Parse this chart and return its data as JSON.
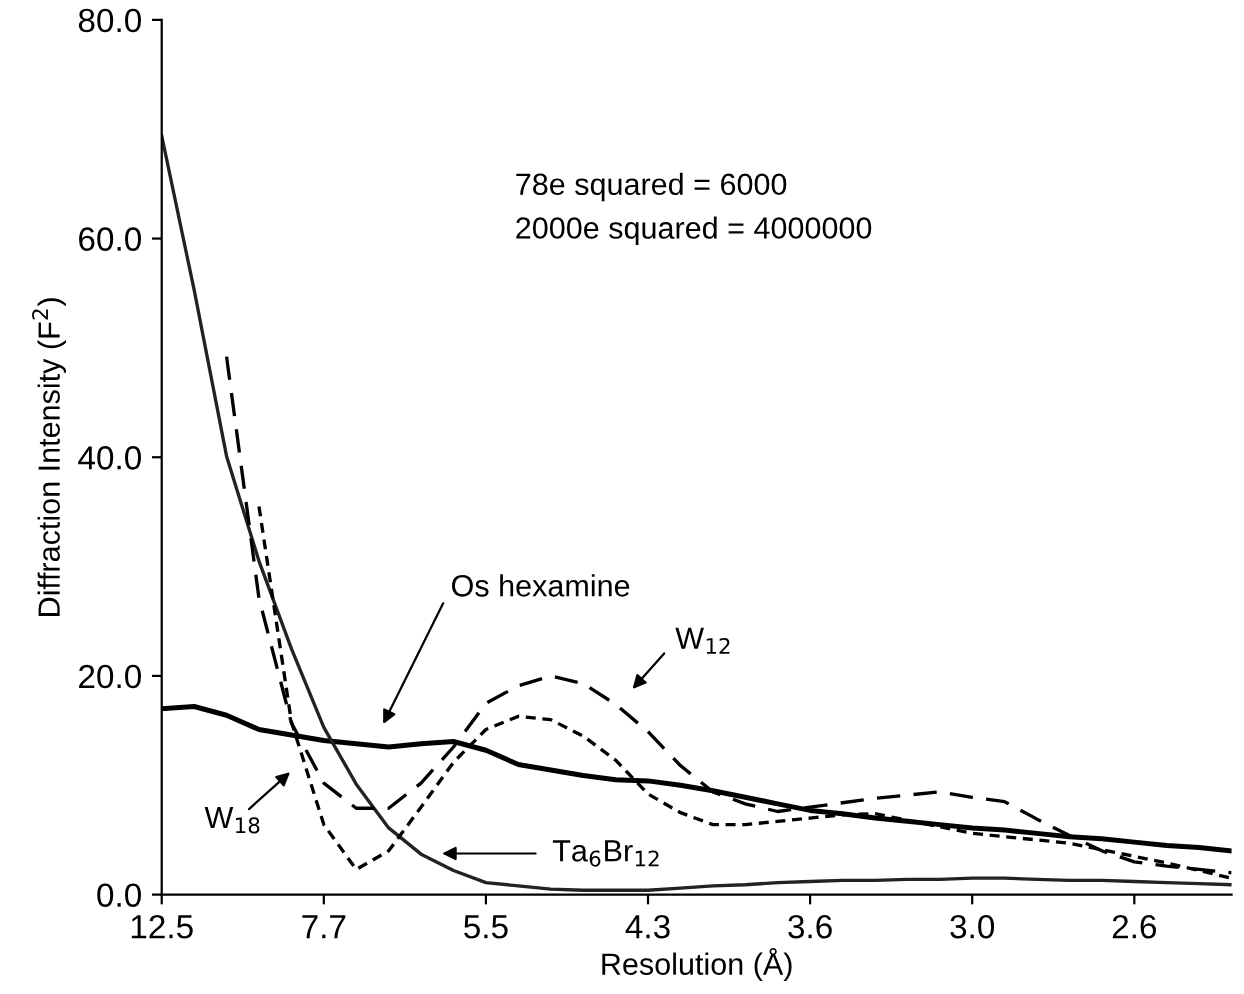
{
  "chart_data": {
    "type": "line",
    "xlabel": "Resolution (Å)",
    "ylabel": "Diffraction Intensity (F$^{2}$)",
    "categories": [
      "12.5",
      null,
      null,
      null,
      null,
      "7.7",
      null,
      null,
      null,
      null,
      "5.5",
      null,
      null,
      null,
      null,
      "4.3",
      null,
      null,
      null,
      null,
      "3.6",
      null,
      null,
      null,
      null,
      "3.0",
      null,
      null,
      null,
      null,
      "2.6",
      null,
      null,
      null
    ],
    "ylim": [
      0,
      80
    ],
    "yticks": [
      {
        "value": 0,
        "label": "0.0"
      },
      {
        "value": 20,
        "label": "20.0"
      },
      {
        "value": 40,
        "label": "40.0"
      },
      {
        "value": 60,
        "label": "60.0"
      },
      {
        "value": 80,
        "label": "80.0"
      }
    ],
    "grid": false,
    "legend": false,
    "marker": "none",
    "series": [
      {
        "color": "#000000",
        "line_style": "solid",
        "values": [
          17.0,
          17.2,
          16.4,
          15.1,
          14.6,
          14.1,
          13.8,
          13.5,
          13.8,
          14.0,
          13.2,
          11.9,
          11.4,
          10.9,
          10.5,
          10.4,
          10.0,
          9.5,
          8.9,
          8.3,
          7.7,
          7.4,
          7.0,
          6.7,
          6.4,
          6.1,
          5.9,
          5.6,
          5.3,
          5.1,
          4.8,
          4.5,
          4.3,
          4.0
        ]
      },
      {
        "color": "#222222",
        "line_style": "solid",
        "values": [
          69.4,
          55.3,
          40.1,
          30.5,
          22.5,
          15.3,
          10.1,
          6.1,
          3.7,
          2.2,
          1.1,
          0.8,
          0.5,
          0.4,
          0.4,
          0.4,
          0.6,
          0.8,
          0.9,
          1.1,
          1.2,
          1.3,
          1.3,
          1.4,
          1.4,
          1.5,
          1.5,
          1.4,
          1.3,
          1.3,
          1.2,
          1.1,
          1.0,
          0.9
        ]
      },
      {
        "color": "#000000",
        "line_style": "dotted",
        "values": [
          null,
          null,
          null,
          35.5,
          15.8,
          6.4,
          2.3,
          4.0,
          8.0,
          12.1,
          15.1,
          16.3,
          16.0,
          14.5,
          12.3,
          9.2,
          7.5,
          6.4,
          6.4,
          6.7,
          7.0,
          7.3,
          7.4,
          6.8,
          6.2,
          5.6,
          5.3,
          5.0,
          4.7,
          4.1,
          3.5,
          2.9,
          2.2,
          1.5
        ]
      },
      {
        "color": "#000000",
        "line_style": "dashed",
        "values": [
          null,
          null,
          49.2,
          27.1,
          15.7,
          10.2,
          7.9,
          7.9,
          10.2,
          13.5,
          17.5,
          19.1,
          20.0,
          19.3,
          17.4,
          14.9,
          11.8,
          9.4,
          8.3,
          7.6,
          8.0,
          8.4,
          8.8,
          9.1,
          9.4,
          8.9,
          8.5,
          6.9,
          5.4,
          4.0,
          3.0,
          2.6,
          2.3,
          2.0
        ]
      }
    ],
    "annotations": [
      "Os hexamine",
      "W$_{18}$",
      "Ta$_{6}$Br$_{12}$",
      "W$_{12}$",
      "78e squared = 6000",
      "2000e squared = 4000000"
    ]
  }
}
